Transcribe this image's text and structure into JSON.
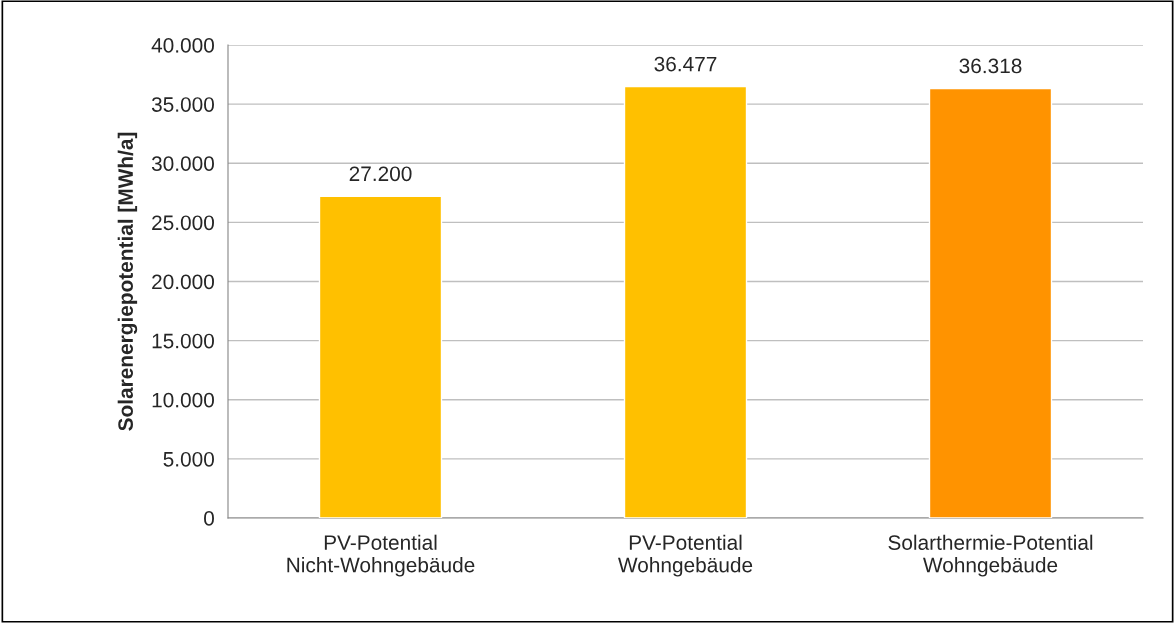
{
  "chart_data": {
    "type": "bar",
    "ylabel": "Solarenergiepotential [MWh/a]",
    "categories": [
      "PV-Potential\nNicht-Wohngebäude",
      "PV-Potential\nWohngebäude",
      "Solarthermie-Potential\nWohngebäude"
    ],
    "values": [
      27200,
      36477,
      36318
    ],
    "colors": [
      "#ffc000",
      "#ffc000",
      "#ff9300"
    ],
    "value_labels": [
      "27.200",
      "36.477",
      "36.318"
    ],
    "ylim": [
      0,
      40000
    ],
    "yticks": [
      {
        "value": 0,
        "label": "0"
      },
      {
        "value": 5000,
        "label": "5.000"
      },
      {
        "value": 10000,
        "label": "10.000"
      },
      {
        "value": 15000,
        "label": "15.000"
      },
      {
        "value": 20000,
        "label": "20.000"
      },
      {
        "value": 25000,
        "label": "25.000"
      },
      {
        "value": 30000,
        "label": "30.000"
      },
      {
        "value": 35000,
        "label": "35.000"
      },
      {
        "value": 40000,
        "label": "40.000"
      }
    ],
    "grid": "y",
    "legend": false
  }
}
